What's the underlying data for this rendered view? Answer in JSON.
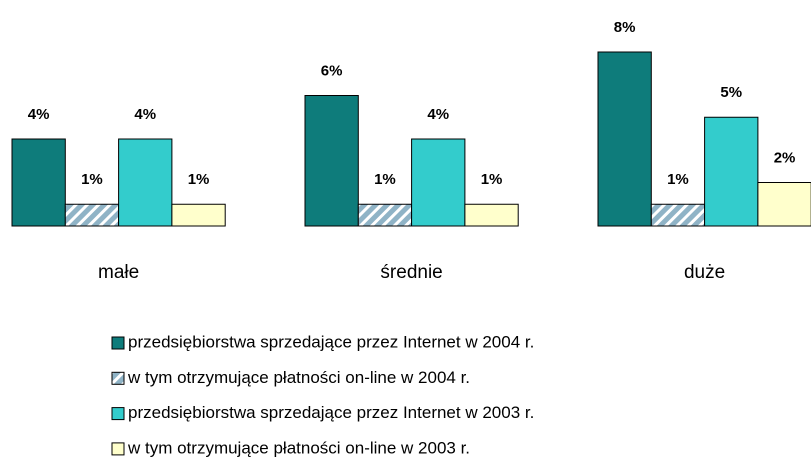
{
  "chart_data": {
    "type": "bar",
    "categories": [
      "małe",
      "średnie",
      "duże"
    ],
    "series": [
      {
        "name": "przedsiębiorstwa sprzedające przez Internet w 2004 r.",
        "color": "#0e7c7b",
        "values": [
          4,
          6,
          8
        ],
        "value_labels": [
          "4%",
          "6%",
          "8%"
        ]
      },
      {
        "name": "w tym otrzymujące płatności on-line w 2004 r.",
        "color": "#a6c4d4",
        "pattern": "hatch",
        "values": [
          1,
          1,
          1
        ],
        "value_labels": [
          "1%",
          "1%",
          "1%"
        ]
      },
      {
        "name": "przedsiębiorstwa sprzedające przez Internet w 2003 r.",
        "color": "#33cccc",
        "values": [
          4,
          4,
          5
        ],
        "value_labels": [
          "4%",
          "4%",
          "5%"
        ]
      },
      {
        "name": "w tym otrzymujące płatności on-line w 2003 r.",
        "color": "#ffffcc",
        "values": [
          1,
          1,
          2
        ],
        "value_labels": [
          "1%",
          "1%",
          "2%"
        ]
      }
    ]
  }
}
